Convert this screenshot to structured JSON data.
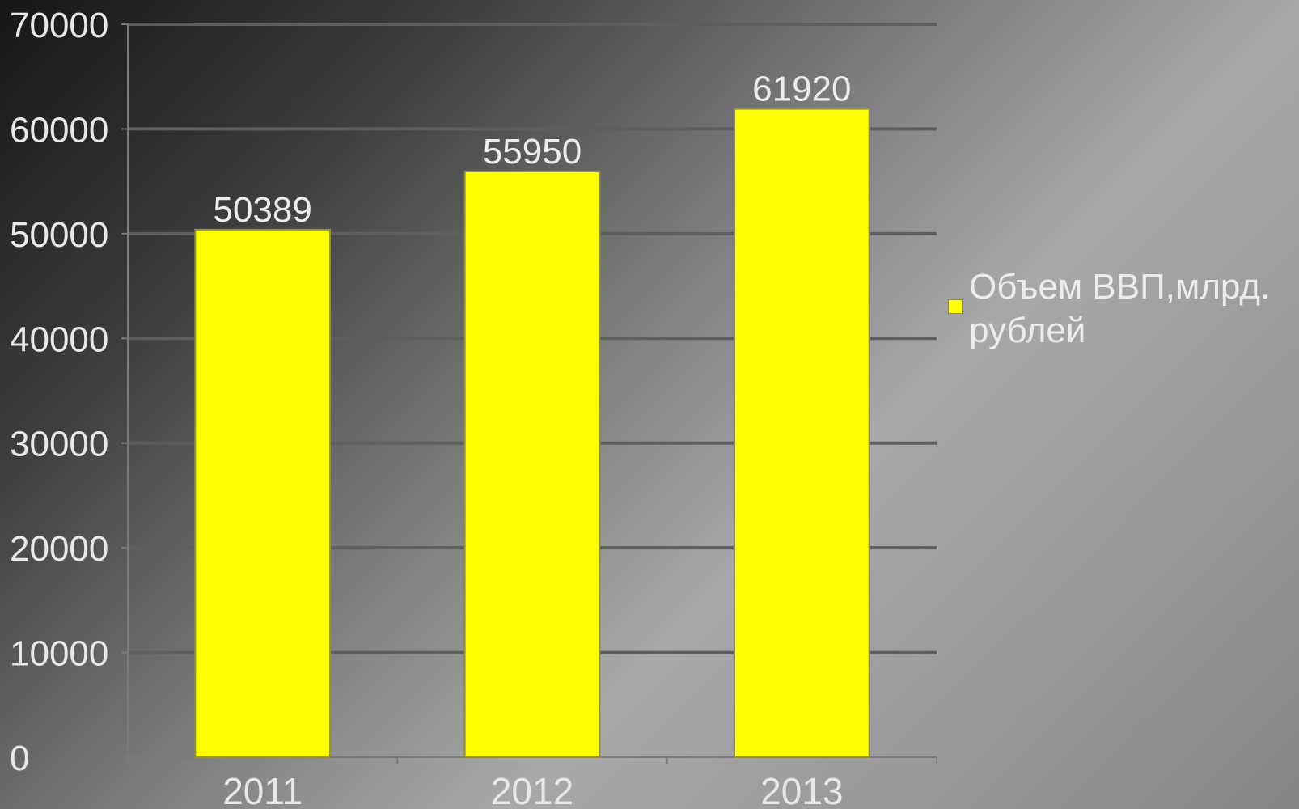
{
  "chart_data": {
    "type": "bar",
    "categories": [
      "2011",
      "2012",
      "2013"
    ],
    "series": [
      {
        "name": "Объем ВВП,млрд. рублей",
        "values": [
          50389,
          55950,
          61920
        ]
      }
    ],
    "data_labels": [
      "50389",
      "55950",
      "61920"
    ],
    "ylim": [
      0,
      70000
    ],
    "yticks": [
      0,
      10000,
      20000,
      30000,
      40000,
      50000,
      60000,
      70000
    ],
    "ytick_labels": [
      "0",
      "10000",
      "20000",
      "30000",
      "40000",
      "50000",
      "60000",
      "70000"
    ],
    "grid": true,
    "legend_position": "right",
    "bar_color": "#ffff00",
    "grid_color": "#5e5e5e",
    "title": "",
    "xlabel": "",
    "ylabel": ""
  }
}
